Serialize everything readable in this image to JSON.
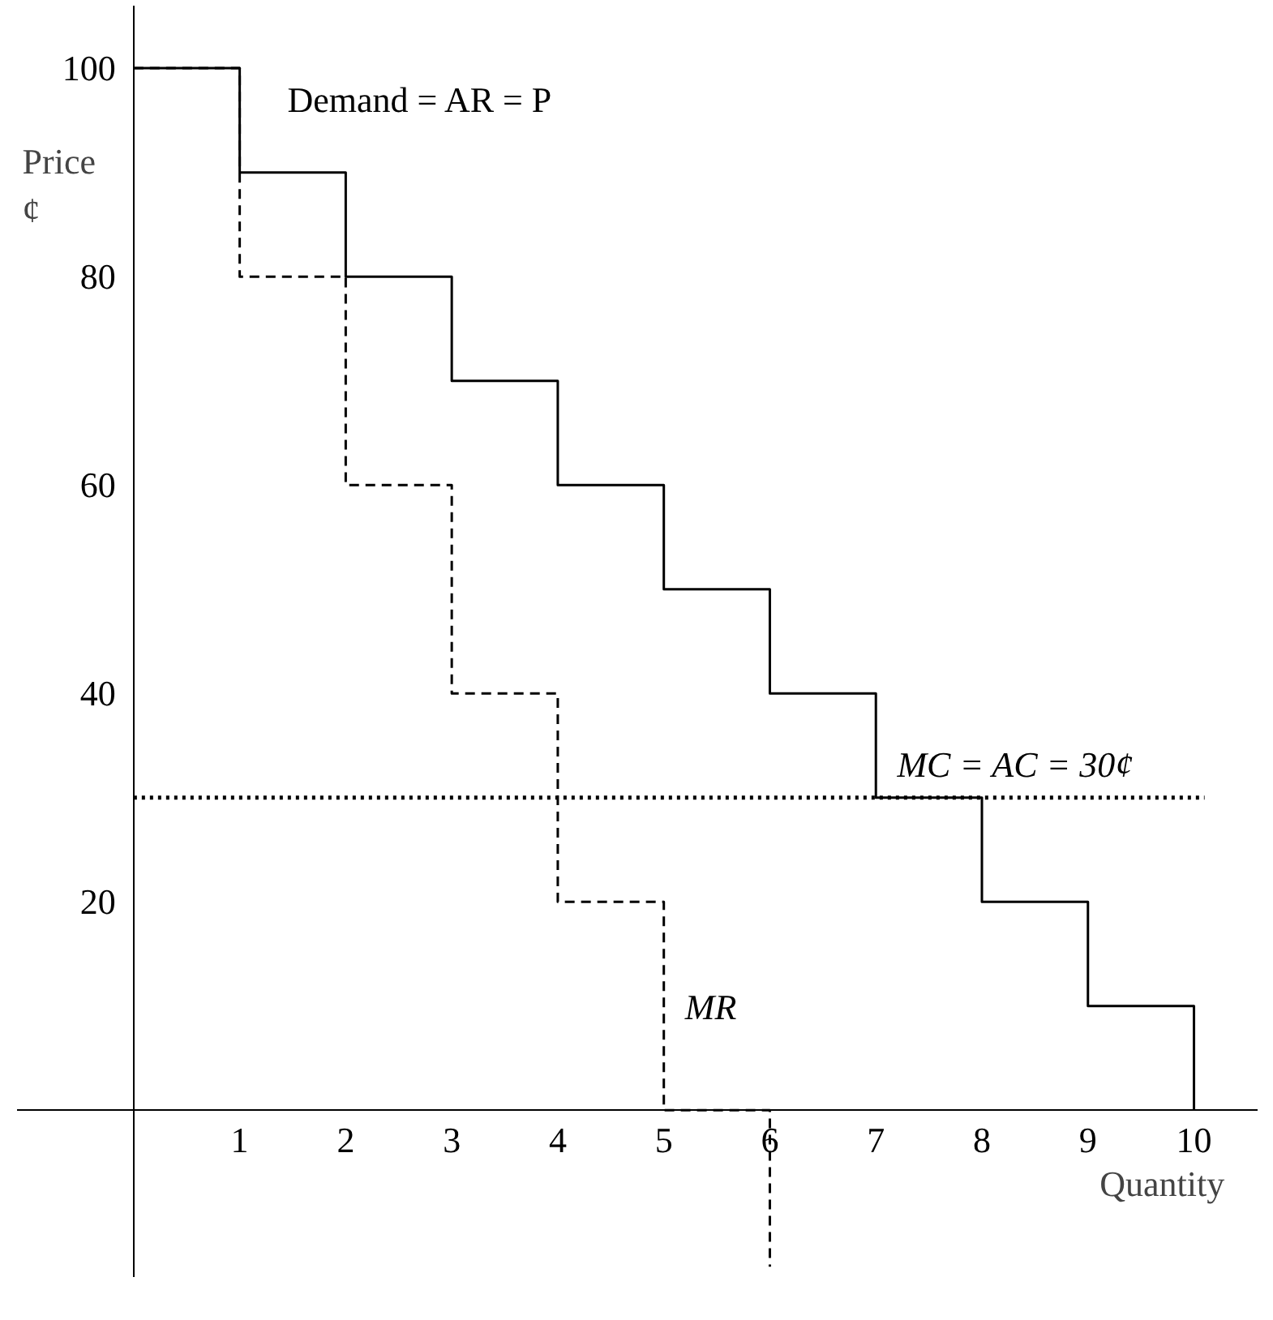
{
  "chart_data": {
    "type": "step",
    "ylabel": "Price ¢",
    "xlabel": "Quantity",
    "xlim": [
      -1.1,
      10.6
    ],
    "ylim": [
      -16,
      106
    ],
    "xticks": [
      1,
      2,
      3,
      4,
      5,
      6,
      7,
      8,
      9,
      10
    ],
    "yticks": [
      20,
      40,
      60,
      80,
      100
    ],
    "grid": false,
    "marker": "none",
    "series": [
      {
        "name": "Demand = AR = P",
        "color": "#000000",
        "line_style": "solid",
        "x": [
          0,
          1,
          2,
          3,
          4,
          5,
          6,
          7,
          8,
          9,
          10
        ],
        "values": [
          100,
          90,
          80,
          70,
          60,
          50,
          40,
          30,
          20,
          10,
          0
        ]
      },
      {
        "name": "MR",
        "color": "#000000",
        "line_style": "dashed",
        "x": [
          0,
          1,
          2,
          3,
          4,
          5,
          6
        ],
        "values": [
          100,
          80,
          60,
          40,
          20,
          0,
          -15
        ]
      },
      {
        "name": "MC = AC = 30¢",
        "type": "line",
        "color": "#000000",
        "line_style": "dotted",
        "x": [
          0,
          10.1
        ],
        "values": [
          30,
          30
        ]
      }
    ]
  }
}
